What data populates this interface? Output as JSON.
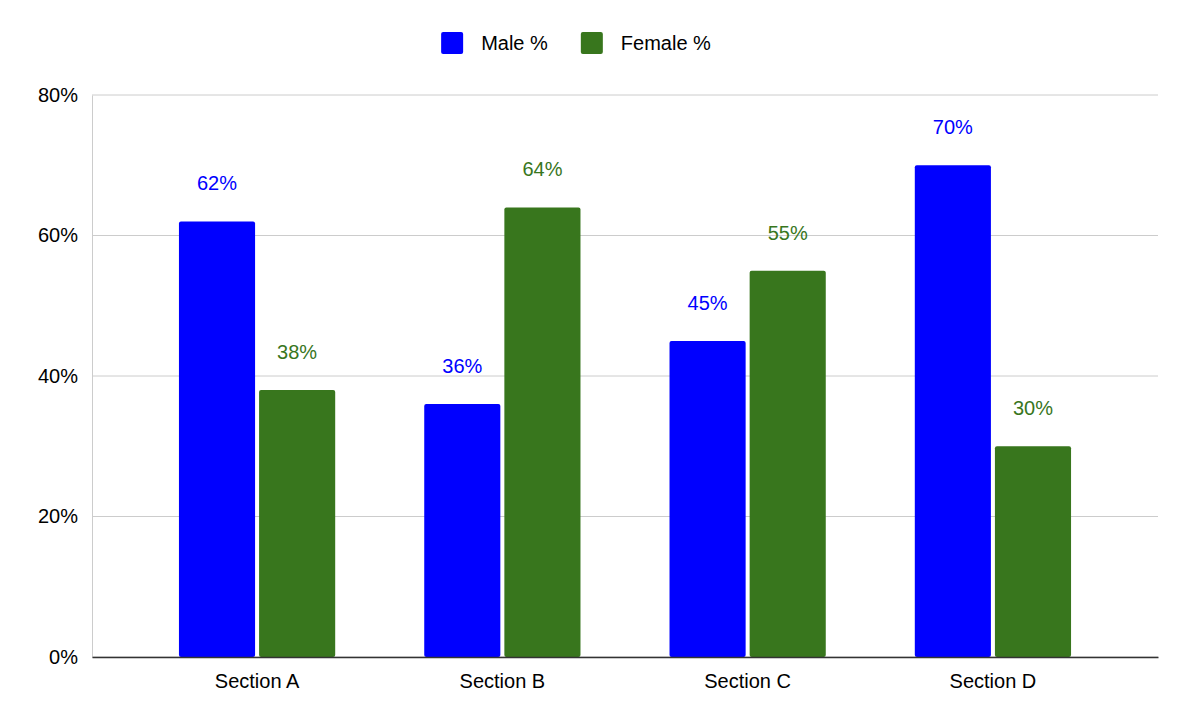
{
  "chart_data": {
    "type": "bar",
    "categories": [
      "Section A",
      "Section B",
      "Section C",
      "Section D"
    ],
    "series": [
      {
        "name": "Male %",
        "color": "#0000ff",
        "values": [
          62,
          36,
          45,
          70
        ],
        "value_labels": [
          "62%",
          "36%",
          "45%",
          "70%"
        ]
      },
      {
        "name": "Female %",
        "color": "#38761d",
        "values": [
          38,
          64,
          55,
          30
        ],
        "value_labels": [
          "38%",
          "64%",
          "55%",
          "30%"
        ]
      }
    ],
    "ylim": [
      0,
      80
    ],
    "yticks": [
      {
        "value": 0,
        "label": "0%"
      },
      {
        "value": 20,
        "label": "20%"
      },
      {
        "value": 40,
        "label": "40%"
      },
      {
        "value": 60,
        "label": "60%"
      },
      {
        "value": 80,
        "label": "80%"
      }
    ],
    "grid": true,
    "legend": "top",
    "data_labels": true
  }
}
